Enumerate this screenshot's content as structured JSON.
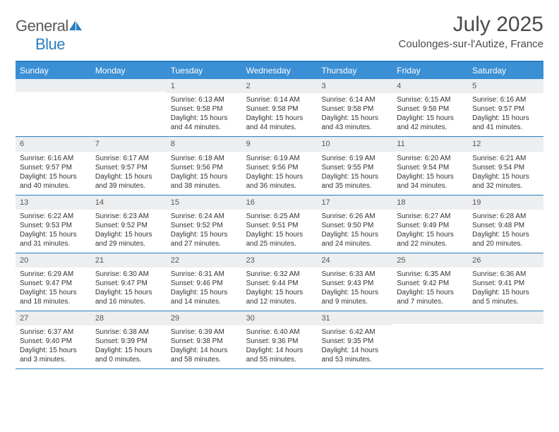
{
  "logo": {
    "text1": "General",
    "text2": "Blue"
  },
  "title": "July 2025",
  "location": "Coulonges-sur-l'Autize, France",
  "colors": {
    "header_bg": "#3b8fd4",
    "border": "#2a7fbf",
    "daynum_bg": "#eceef0",
    "text": "#333333",
    "title_color": "#4a4a4a"
  },
  "day_names": [
    "Sunday",
    "Monday",
    "Tuesday",
    "Wednesday",
    "Thursday",
    "Friday",
    "Saturday"
  ],
  "weeks": [
    [
      {
        "n": "",
        "body": []
      },
      {
        "n": "",
        "body": []
      },
      {
        "n": "1",
        "body": [
          "Sunrise: 6:13 AM",
          "Sunset: 9:58 PM",
          "Daylight: 15 hours and 44 minutes."
        ]
      },
      {
        "n": "2",
        "body": [
          "Sunrise: 6:14 AM",
          "Sunset: 9:58 PM",
          "Daylight: 15 hours and 44 minutes."
        ]
      },
      {
        "n": "3",
        "body": [
          "Sunrise: 6:14 AM",
          "Sunset: 9:58 PM",
          "Daylight: 15 hours and 43 minutes."
        ]
      },
      {
        "n": "4",
        "body": [
          "Sunrise: 6:15 AM",
          "Sunset: 9:58 PM",
          "Daylight: 15 hours and 42 minutes."
        ]
      },
      {
        "n": "5",
        "body": [
          "Sunrise: 6:16 AM",
          "Sunset: 9:57 PM",
          "Daylight: 15 hours and 41 minutes."
        ]
      }
    ],
    [
      {
        "n": "6",
        "body": [
          "Sunrise: 6:16 AM",
          "Sunset: 9:57 PM",
          "Daylight: 15 hours and 40 minutes."
        ]
      },
      {
        "n": "7",
        "body": [
          "Sunrise: 6:17 AM",
          "Sunset: 9:57 PM",
          "Daylight: 15 hours and 39 minutes."
        ]
      },
      {
        "n": "8",
        "body": [
          "Sunrise: 6:18 AM",
          "Sunset: 9:56 PM",
          "Daylight: 15 hours and 38 minutes."
        ]
      },
      {
        "n": "9",
        "body": [
          "Sunrise: 6:19 AM",
          "Sunset: 9:56 PM",
          "Daylight: 15 hours and 36 minutes."
        ]
      },
      {
        "n": "10",
        "body": [
          "Sunrise: 6:19 AM",
          "Sunset: 9:55 PM",
          "Daylight: 15 hours and 35 minutes."
        ]
      },
      {
        "n": "11",
        "body": [
          "Sunrise: 6:20 AM",
          "Sunset: 9:54 PM",
          "Daylight: 15 hours and 34 minutes."
        ]
      },
      {
        "n": "12",
        "body": [
          "Sunrise: 6:21 AM",
          "Sunset: 9:54 PM",
          "Daylight: 15 hours and 32 minutes."
        ]
      }
    ],
    [
      {
        "n": "13",
        "body": [
          "Sunrise: 6:22 AM",
          "Sunset: 9:53 PM",
          "Daylight: 15 hours and 31 minutes."
        ]
      },
      {
        "n": "14",
        "body": [
          "Sunrise: 6:23 AM",
          "Sunset: 9:52 PM",
          "Daylight: 15 hours and 29 minutes."
        ]
      },
      {
        "n": "15",
        "body": [
          "Sunrise: 6:24 AM",
          "Sunset: 9:52 PM",
          "Daylight: 15 hours and 27 minutes."
        ]
      },
      {
        "n": "16",
        "body": [
          "Sunrise: 6:25 AM",
          "Sunset: 9:51 PM",
          "Daylight: 15 hours and 25 minutes."
        ]
      },
      {
        "n": "17",
        "body": [
          "Sunrise: 6:26 AM",
          "Sunset: 9:50 PM",
          "Daylight: 15 hours and 24 minutes."
        ]
      },
      {
        "n": "18",
        "body": [
          "Sunrise: 6:27 AM",
          "Sunset: 9:49 PM",
          "Daylight: 15 hours and 22 minutes."
        ]
      },
      {
        "n": "19",
        "body": [
          "Sunrise: 6:28 AM",
          "Sunset: 9:48 PM",
          "Daylight: 15 hours and 20 minutes."
        ]
      }
    ],
    [
      {
        "n": "20",
        "body": [
          "Sunrise: 6:29 AM",
          "Sunset: 9:47 PM",
          "Daylight: 15 hours and 18 minutes."
        ]
      },
      {
        "n": "21",
        "body": [
          "Sunrise: 6:30 AM",
          "Sunset: 9:47 PM",
          "Daylight: 15 hours and 16 minutes."
        ]
      },
      {
        "n": "22",
        "body": [
          "Sunrise: 6:31 AM",
          "Sunset: 9:46 PM",
          "Daylight: 15 hours and 14 minutes."
        ]
      },
      {
        "n": "23",
        "body": [
          "Sunrise: 6:32 AM",
          "Sunset: 9:44 PM",
          "Daylight: 15 hours and 12 minutes."
        ]
      },
      {
        "n": "24",
        "body": [
          "Sunrise: 6:33 AM",
          "Sunset: 9:43 PM",
          "Daylight: 15 hours and 9 minutes."
        ]
      },
      {
        "n": "25",
        "body": [
          "Sunrise: 6:35 AM",
          "Sunset: 9:42 PM",
          "Daylight: 15 hours and 7 minutes."
        ]
      },
      {
        "n": "26",
        "body": [
          "Sunrise: 6:36 AM",
          "Sunset: 9:41 PM",
          "Daylight: 15 hours and 5 minutes."
        ]
      }
    ],
    [
      {
        "n": "27",
        "body": [
          "Sunrise: 6:37 AM",
          "Sunset: 9:40 PM",
          "Daylight: 15 hours and 3 minutes."
        ]
      },
      {
        "n": "28",
        "body": [
          "Sunrise: 6:38 AM",
          "Sunset: 9:39 PM",
          "Daylight: 15 hours and 0 minutes."
        ]
      },
      {
        "n": "29",
        "body": [
          "Sunrise: 6:39 AM",
          "Sunset: 9:38 PM",
          "Daylight: 14 hours and 58 minutes."
        ]
      },
      {
        "n": "30",
        "body": [
          "Sunrise: 6:40 AM",
          "Sunset: 9:36 PM",
          "Daylight: 14 hours and 55 minutes."
        ]
      },
      {
        "n": "31",
        "body": [
          "Sunrise: 6:42 AM",
          "Sunset: 9:35 PM",
          "Daylight: 14 hours and 53 minutes."
        ]
      },
      {
        "n": "",
        "body": []
      },
      {
        "n": "",
        "body": []
      }
    ]
  ]
}
